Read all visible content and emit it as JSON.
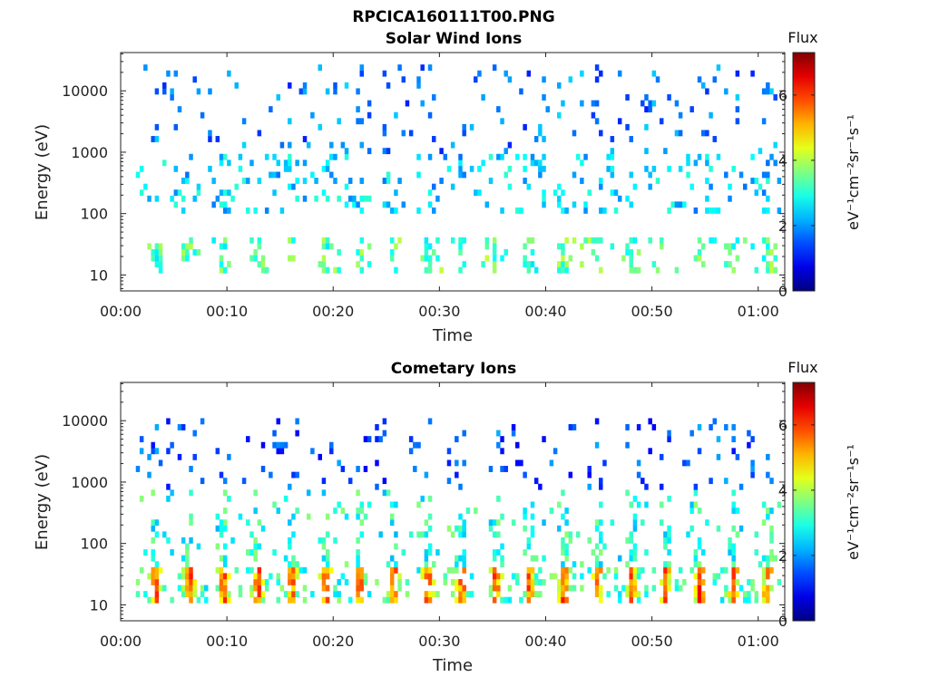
{
  "figure_title": "RPCICA160111T00.PNG",
  "chart_data": [
    {
      "type": "heatmap",
      "title": "Solar Wind Ions",
      "xlabel": "Time",
      "ylabel": "Energy (eV)",
      "x_ticks": [
        "00:00",
        "00:10",
        "00:20",
        "00:30",
        "00:40",
        "00:50",
        "01:00"
      ],
      "x_range_minutes": [
        0,
        62.5
      ],
      "y_ticks": [
        "10",
        "100",
        "1000",
        "10000"
      ],
      "y_scale": "log",
      "y_range": [
        5.5,
        42000
      ],
      "colorbar": {
        "label": "Flux",
        "unit": "eV⁻¹cm⁻²sr⁻¹s⁻¹",
        "ticks": [
          "0",
          "2",
          "4",
          "6"
        ],
        "range": [
          0,
          7.3
        ],
        "colormap": "jet"
      },
      "pulse_period_min": 3.2,
      "pulse_start_min": 3.3,
      "bands": [
        {
          "e_min": 10,
          "e_max": 45,
          "flux": 3.2,
          "note": "low-energy bursts"
        },
        {
          "e_min": 100,
          "e_max": 1000,
          "flux": 2.4,
          "note": "scattered counts"
        },
        {
          "e_min": 1000,
          "e_max": 30000,
          "flux": 1.8,
          "note": "sparse background"
        }
      ]
    },
    {
      "type": "heatmap",
      "title": "Cometary Ions",
      "xlabel": "Time",
      "ylabel": "Energy (eV)",
      "x_ticks": [
        "00:00",
        "00:10",
        "00:20",
        "00:30",
        "00:40",
        "00:50",
        "01:00"
      ],
      "x_range_minutes": [
        0,
        62.5
      ],
      "y_ticks": [
        "10",
        "100",
        "1000",
        "10000"
      ],
      "y_scale": "log",
      "y_range": [
        5.5,
        42000
      ],
      "colorbar": {
        "label": "Flux",
        "unit": "eV⁻¹cm⁻²sr⁻¹s⁻¹",
        "ticks": [
          "0",
          "2",
          "4",
          "6"
        ],
        "range": [
          0,
          7.3
        ],
        "colormap": "jet"
      },
      "pulse_period_min": 3.2,
      "pulse_start_min": 3.3,
      "bands": [
        {
          "e_min": 10,
          "e_max": 45,
          "flux": 5.2,
          "note": "intense pulsed cometary ions, peak ~6"
        },
        {
          "e_min": 45,
          "e_max": 800,
          "flux": 3.0,
          "note": "upward dispersed streaks"
        },
        {
          "e_min": 800,
          "e_max": 12000,
          "flux": 1.5,
          "note": "sparse high-energy counts"
        }
      ]
    }
  ]
}
